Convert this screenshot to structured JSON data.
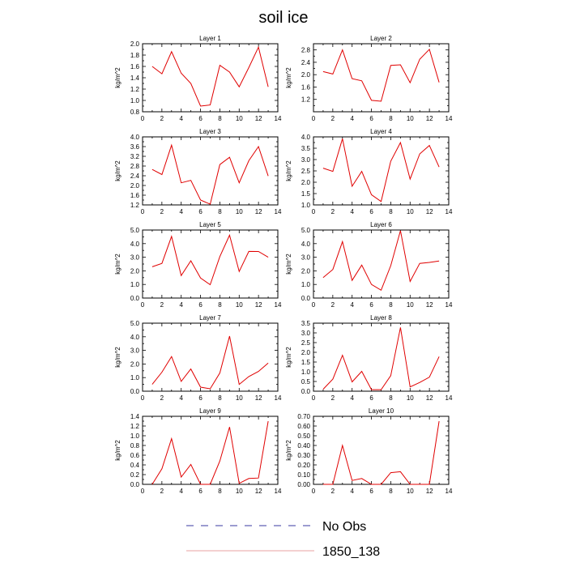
{
  "title": "soil ice",
  "legend": {
    "entries": [
      {
        "label": "No Obs",
        "style": "dashed",
        "color": "#3a3aa0"
      },
      {
        "label": "1850_138",
        "style": "solid",
        "color": "#e8a0a0"
      }
    ]
  },
  "series_color": "#e00000",
  "chart_data": [
    {
      "type": "line",
      "title": "Layer 1",
      "ylabel": "kg/m^2",
      "xlim": [
        0,
        14
      ],
      "ylim": [
        0.8,
        2.0
      ],
      "x_ticks": [
        0,
        2,
        4,
        6,
        8,
        10,
        12,
        14
      ],
      "y_ticks": [
        0.8,
        1.0,
        1.2,
        1.4,
        1.6,
        1.8,
        2.0
      ],
      "y_tick_labels": [
        "0.8",
        "1.0",
        "1.2",
        "1.4",
        "1.6",
        "1.8",
        "2.0"
      ],
      "series": [
        {
          "name": "1850_138",
          "x": [
            1,
            2,
            3,
            4,
            5,
            6,
            7,
            8,
            9,
            10,
            11,
            12,
            13
          ],
          "values": [
            1.6,
            1.47,
            1.86,
            1.48,
            1.3,
            0.9,
            0.92,
            1.62,
            1.5,
            1.24,
            1.58,
            1.94,
            1.24
          ]
        }
      ]
    },
    {
      "type": "line",
      "title": "Layer 2",
      "ylabel": "kg/m^2",
      "xlim": [
        0,
        14
      ],
      "ylim": [
        0.8,
        3.0
      ],
      "x_ticks": [
        0,
        2,
        4,
        6,
        8,
        10,
        12,
        14
      ],
      "y_ticks": [
        1.2,
        1.6,
        2.0,
        2.4,
        2.8
      ],
      "y_tick_labels": [
        "1.2",
        "1.6",
        "2.0",
        "2.4",
        "2.8"
      ],
      "series": [
        {
          "name": "1850_138",
          "x": [
            1,
            2,
            3,
            4,
            5,
            6,
            7,
            8,
            9,
            10,
            11,
            12,
            13
          ],
          "values": [
            2.1,
            2.02,
            2.8,
            1.87,
            1.8,
            1.17,
            1.14,
            2.3,
            2.32,
            1.74,
            2.5,
            2.82,
            1.75
          ]
        }
      ]
    },
    {
      "type": "line",
      "title": "Layer 3",
      "ylabel": "kg/m^2",
      "xlim": [
        0,
        14
      ],
      "ylim": [
        1.2,
        4.0
      ],
      "x_ticks": [
        0,
        2,
        4,
        6,
        8,
        10,
        12,
        14
      ],
      "y_ticks": [
        1.2,
        1.6,
        2.0,
        2.4,
        2.8,
        3.2,
        3.6,
        4.0
      ],
      "y_tick_labels": [
        "1.2",
        "1.6",
        "2.0",
        "2.4",
        "2.8",
        "3.2",
        "3.6",
        "4.0"
      ],
      "series": [
        {
          "name": "1850_138",
          "x": [
            1,
            2,
            3,
            4,
            5,
            6,
            7,
            8,
            9,
            10,
            11,
            12,
            13
          ],
          "values": [
            2.66,
            2.45,
            3.66,
            2.11,
            2.21,
            1.4,
            1.23,
            2.86,
            3.16,
            2.11,
            3.02,
            3.6,
            2.39
          ]
        }
      ]
    },
    {
      "type": "line",
      "title": "Layer 4",
      "ylabel": "kg/m^2",
      "xlim": [
        0,
        14
      ],
      "ylim": [
        1.0,
        4.0
      ],
      "x_ticks": [
        0,
        2,
        4,
        6,
        8,
        10,
        12,
        14
      ],
      "y_ticks": [
        1.0,
        1.5,
        2.0,
        2.5,
        3.0,
        3.5,
        4.0
      ],
      "y_tick_labels": [
        "1.0",
        "1.5",
        "2.0",
        "2.5",
        "3.0",
        "3.5",
        "4.0"
      ],
      "series": [
        {
          "name": "1850_138",
          "x": [
            1,
            2,
            3,
            4,
            5,
            6,
            7,
            8,
            9,
            10,
            11,
            12,
            13
          ],
          "values": [
            2.62,
            2.48,
            3.92,
            1.82,
            2.48,
            1.45,
            1.15,
            2.93,
            3.75,
            2.14,
            3.25,
            3.62,
            2.67
          ]
        }
      ]
    },
    {
      "type": "line",
      "title": "Layer 5",
      "ylabel": "kg/m^2",
      "xlim": [
        0,
        14
      ],
      "ylim": [
        0.0,
        5.0
      ],
      "x_ticks": [
        0,
        2,
        4,
        6,
        8,
        10,
        12,
        14
      ],
      "y_ticks": [
        0.0,
        1.0,
        2.0,
        3.0,
        4.0,
        5.0
      ],
      "y_tick_labels": [
        "0.0",
        "1.0",
        "2.0",
        "3.0",
        "4.0",
        "5.0"
      ],
      "series": [
        {
          "name": "1850_138",
          "x": [
            1,
            2,
            3,
            4,
            5,
            6,
            7,
            8,
            9,
            10,
            11,
            12,
            13
          ],
          "values": [
            2.3,
            2.55,
            4.53,
            1.65,
            2.74,
            1.47,
            0.98,
            3.05,
            4.62,
            1.95,
            3.43,
            3.42,
            3.0
          ]
        }
      ]
    },
    {
      "type": "line",
      "title": "Layer 6",
      "ylabel": "kg/m^2",
      "xlim": [
        0,
        14
      ],
      "ylim": [
        0.0,
        5.0
      ],
      "x_ticks": [
        0,
        2,
        4,
        6,
        8,
        10,
        12,
        14
      ],
      "y_ticks": [
        0.0,
        1.0,
        2.0,
        3.0,
        4.0,
        5.0
      ],
      "y_tick_labels": [
        "0.0",
        "1.0",
        "2.0",
        "3.0",
        "4.0",
        "5.0"
      ],
      "series": [
        {
          "name": "1850_138",
          "x": [
            1,
            2,
            3,
            4,
            5,
            6,
            7,
            8,
            9,
            10,
            11,
            12,
            13
          ],
          "values": [
            1.5,
            2.1,
            4.15,
            1.3,
            2.42,
            1.0,
            0.58,
            2.38,
            4.95,
            1.22,
            2.55,
            2.62,
            2.72
          ]
        }
      ]
    },
    {
      "type": "line",
      "title": "Layer 7",
      "ylabel": "kg/m^2",
      "xlim": [
        0,
        14
      ],
      "ylim": [
        0.0,
        5.0
      ],
      "x_ticks": [
        0,
        2,
        4,
        6,
        8,
        10,
        12,
        14
      ],
      "y_ticks": [
        0.0,
        1.0,
        2.0,
        3.0,
        4.0,
        5.0
      ],
      "y_tick_labels": [
        "0.0",
        "1.0",
        "2.0",
        "3.0",
        "4.0",
        "5.0"
      ],
      "series": [
        {
          "name": "1850_138",
          "x": [
            1,
            2,
            3,
            4,
            5,
            6,
            7,
            8,
            9,
            10,
            11,
            12,
            13
          ],
          "values": [
            0.5,
            1.4,
            2.55,
            0.72,
            1.63,
            0.3,
            0.18,
            1.34,
            4.05,
            0.5,
            1.08,
            1.45,
            2.07
          ]
        }
      ]
    },
    {
      "type": "line",
      "title": "Layer 8",
      "ylabel": "kg/m^2",
      "xlim": [
        0,
        14
      ],
      "ylim": [
        0.0,
        3.5
      ],
      "x_ticks": [
        0,
        2,
        4,
        6,
        8,
        10,
        12,
        14
      ],
      "y_ticks": [
        0.0,
        0.5,
        1.0,
        1.5,
        2.0,
        2.5,
        3.0,
        3.5
      ],
      "y_tick_labels": [
        "0.0",
        "0.5",
        "1.0",
        "1.5",
        "2.0",
        "2.5",
        "3.0",
        "3.5"
      ],
      "series": [
        {
          "name": "1850_138",
          "x": [
            1,
            2,
            3,
            4,
            5,
            6,
            7,
            8,
            9,
            10,
            11,
            12,
            13
          ],
          "values": [
            0.1,
            0.62,
            1.85,
            0.48,
            1.02,
            0.08,
            0.08,
            0.8,
            3.28,
            0.22,
            0.45,
            0.72,
            1.78
          ]
        }
      ]
    },
    {
      "type": "line",
      "title": "Layer 9",
      "ylabel": "kg/m^2",
      "xlim": [
        0,
        14
      ],
      "ylim": [
        0.0,
        1.4
      ],
      "x_ticks": [
        0,
        2,
        4,
        6,
        8,
        10,
        12,
        14
      ],
      "y_ticks": [
        0.0,
        0.2,
        0.4,
        0.6,
        0.8,
        1.0,
        1.2,
        1.4
      ],
      "y_tick_labels": [
        "0.0",
        "0.2",
        "0.4",
        "0.6",
        "0.8",
        "1.0",
        "1.2",
        "1.4"
      ],
      "series": [
        {
          "name": "1850_138",
          "x": [
            1,
            2,
            3,
            4,
            5,
            6,
            7,
            8,
            9,
            10,
            11,
            12,
            13
          ],
          "values": [
            0.0,
            0.32,
            0.94,
            0.15,
            0.41,
            0.0,
            0.0,
            0.48,
            1.18,
            0.02,
            0.12,
            0.13,
            1.3
          ]
        }
      ]
    },
    {
      "type": "line",
      "title": "Layer 10",
      "ylabel": "kg/m^2",
      "xlim": [
        0,
        14
      ],
      "ylim": [
        0.0,
        0.7
      ],
      "x_ticks": [
        0,
        2,
        4,
        6,
        8,
        10,
        12,
        14
      ],
      "y_ticks": [
        0.0,
        0.1,
        0.2,
        0.3,
        0.4,
        0.5,
        0.6,
        0.7
      ],
      "y_tick_labels": [
        "0.00",
        "0.10",
        "0.20",
        "0.30",
        "0.40",
        "0.50",
        "0.60",
        "0.70"
      ],
      "series": [
        {
          "name": "1850_138",
          "x": [
            1,
            2,
            3,
            4,
            5,
            6,
            7,
            8,
            9,
            10,
            11,
            12,
            13
          ],
          "values": [
            0.0,
            0.0,
            0.4,
            0.04,
            0.06,
            0.0,
            0.0,
            0.12,
            0.13,
            0.0,
            0.0,
            0.0,
            0.65
          ]
        }
      ]
    }
  ]
}
